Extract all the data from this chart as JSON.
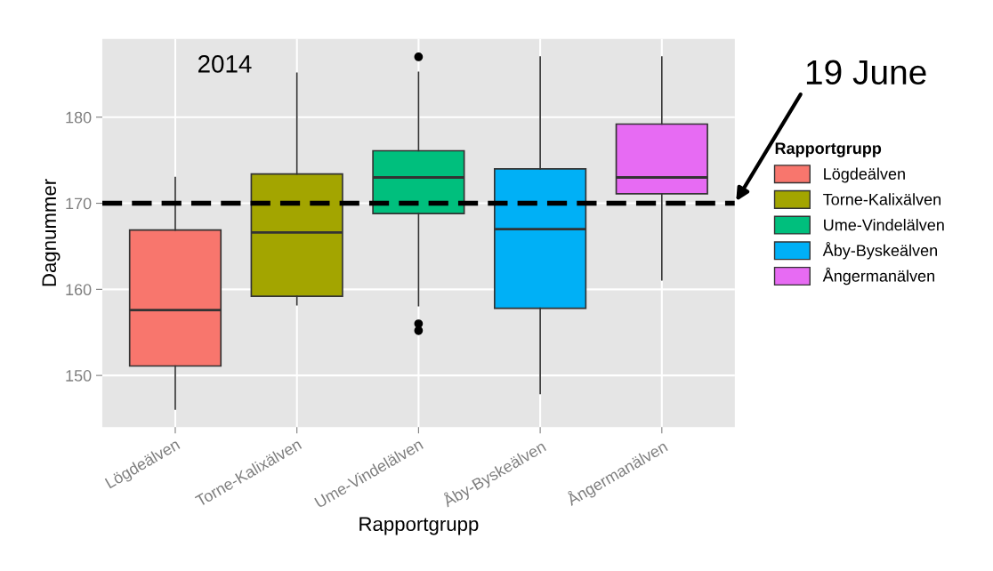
{
  "chart_data": {
    "type": "box",
    "xlabel": "Rapportgrupp",
    "ylabel": "Dagnummer",
    "legend_title": "Rapportgrupp",
    "legend": "right",
    "grid": true,
    "categories": [
      "Lögdeälven",
      "Torne-Kalixälven",
      "Ume-Vindelälven",
      "Åby-Byskeälven",
      "Ångermanälven"
    ],
    "colors": [
      "#f8766d",
      "#a3a500",
      "#00bf7d",
      "#00b0f6",
      "#e76bf3"
    ],
    "boxes": [
      {
        "low": 146.1,
        "q1": 151.1,
        "median": 157.6,
        "q3": 166.9,
        "high": 173.0
      },
      {
        "low": 158.2,
        "q1": 159.2,
        "median": 166.6,
        "q3": 173.4,
        "high": 185.1
      },
      {
        "low": 158.1,
        "q1": 168.8,
        "median": 173.0,
        "q3": 176.1,
        "high": 185.2,
        "outliers": [
          187.0,
          156.0,
          155.2
        ]
      },
      {
        "low": 147.9,
        "q1": 157.8,
        "median": 167.0,
        "q3": 174.0,
        "high": 187.0
      },
      {
        "low": 161.1,
        "q1": 171.1,
        "median": 173.0,
        "q3": 179.2,
        "high": 187.0
      }
    ],
    "ylim": [
      144.0,
      189.1
    ],
    "yticks": [
      150,
      160,
      170,
      180
    ],
    "ref_lines": [
      {
        "axis": "y",
        "value": 170,
        "label": "19 June",
        "color": "#000000",
        "line_style": "dashed"
      }
    ],
    "annotations": [
      "2014"
    ]
  }
}
